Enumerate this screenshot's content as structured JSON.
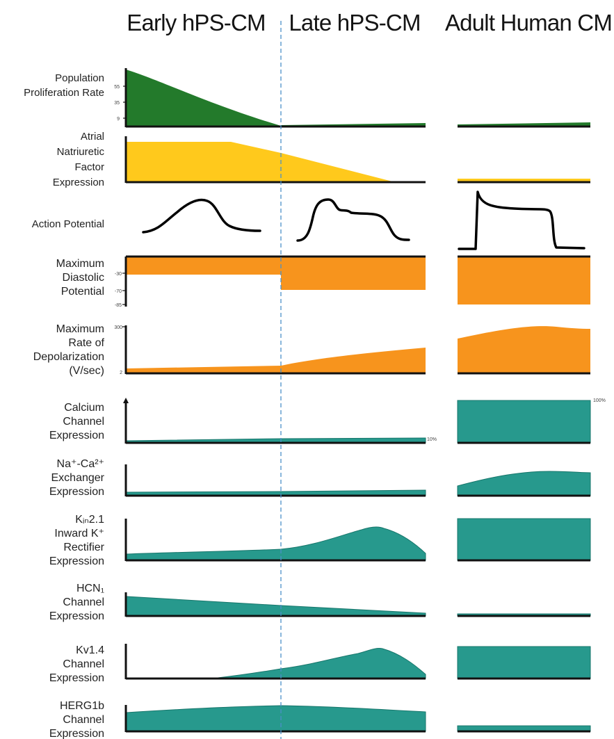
{
  "colors": {
    "green": "#237a2b",
    "yellow": "#ffc91c",
    "orange": "#f7941d",
    "teal": "#27998d",
    "teal_edge": "#17766b",
    "divider": "#4a90c8"
  },
  "columns": {
    "early": "Early hPS-CM",
    "late": "Late hPS-CM",
    "adult": "Adult Human CM"
  },
  "rows": {
    "proliferation": {
      "lines": [
        "Population",
        "Proliferation Rate"
      ],
      "ticks": [
        "55",
        "35",
        "9"
      ]
    },
    "anf": {
      "lines": [
        "Atrial",
        "Natriuretic",
        "Factor",
        "Expression"
      ]
    },
    "action_potential": {
      "lines": [
        "Action Potential"
      ]
    },
    "mdp": {
      "lines": [
        "Maximum",
        "Diastolic",
        "Potential"
      ],
      "ticks": [
        "-30",
        "-70",
        "-85"
      ]
    },
    "depol": {
      "lines": [
        "Maximum",
        "Rate of",
        "Depolarization",
        "(V/sec)"
      ],
      "ticks": [
        "300",
        "2"
      ]
    },
    "calcium": {
      "lines": [
        "Calcium",
        "Channel",
        "Expression"
      ],
      "label_late": "10%",
      "label_adult": "100%"
    },
    "ncx": {
      "lines": [
        "Na⁺-Ca²⁺",
        "Exchanger",
        "Expression"
      ]
    },
    "kir": {
      "lines": [
        "Kᵢₙ2.1",
        "Inward K⁺",
        "Rectifier",
        "Expression"
      ]
    },
    "hcn": {
      "lines": [
        "HCN₁",
        "Channel",
        "Expression"
      ]
    },
    "kv14": {
      "lines": [
        "Kv1.4",
        "Channel",
        "Expression"
      ]
    },
    "herg": {
      "lines": [
        "HERG1b",
        "Channel",
        "Expression"
      ]
    }
  }
}
